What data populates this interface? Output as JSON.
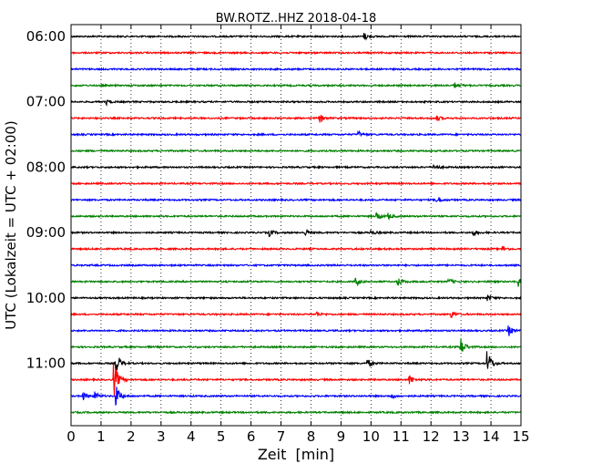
{
  "chart_data": {
    "type": "line",
    "title": "BW.ROTZ..HHZ 2018-04-18",
    "xlabel": "Zeit  [min]",
    "ylabel": "UTC (Lokalzeit = UTC + 02:00)",
    "xlim": [
      0,
      15
    ],
    "x_ticks": [
      "0",
      "1",
      "2",
      "3",
      "4",
      "5",
      "6",
      "7",
      "8",
      "9",
      "10",
      "11",
      "12",
      "13",
      "14",
      "15"
    ],
    "y_ticks": [
      "06:00",
      "07:00",
      "08:00",
      "09:00",
      "10:00",
      "11:00"
    ],
    "grid": "vertical dotted",
    "trace_colors": [
      "#000000",
      "#ff0000",
      "#0000ff",
      "#008000"
    ],
    "trace_start_times": [
      "06:00",
      "06:15",
      "06:30",
      "06:45",
      "07:00",
      "07:15",
      "07:30",
      "07:45",
      "08:00",
      "08:15",
      "08:30",
      "08:45",
      "09:00",
      "09:15",
      "09:30",
      "09:45",
      "10:00",
      "10:15",
      "10:30",
      "10:45",
      "11:00",
      "11:15",
      "11:30",
      "11:45"
    ],
    "events": [
      {
        "trace": 0,
        "minute": 9.8,
        "amplitude": 0.25
      },
      {
        "trace": 3,
        "minute": 12.8,
        "amplitude": 0.2
      },
      {
        "trace": 4,
        "minute": 1.2,
        "amplitude": 0.2
      },
      {
        "trace": 5,
        "minute": 8.3,
        "amplitude": 0.3
      },
      {
        "trace": 5,
        "minute": 12.2,
        "amplitude": 0.2
      },
      {
        "trace": 6,
        "minute": 9.6,
        "amplitude": 0.2
      },
      {
        "trace": 8,
        "minute": 12.1,
        "amplitude": 0.25
      },
      {
        "trace": 10,
        "minute": 12.2,
        "amplitude": 0.3
      },
      {
        "trace": 11,
        "minute": 10.2,
        "amplitude": 0.3
      },
      {
        "trace": 11,
        "minute": 10.6,
        "amplitude": 0.2
      },
      {
        "trace": 12,
        "minute": 6.6,
        "amplitude": 0.3
      },
      {
        "trace": 12,
        "minute": 7.8,
        "amplitude": 0.25
      },
      {
        "trace": 12,
        "minute": 10.0,
        "amplitude": 0.2
      },
      {
        "trace": 12,
        "minute": 13.4,
        "amplitude": 0.25
      },
      {
        "trace": 13,
        "minute": 14.4,
        "amplitude": 0.2
      },
      {
        "trace": 15,
        "minute": 9.5,
        "amplitude": 0.3
      },
      {
        "trace": 15,
        "minute": 10.9,
        "amplitude": 0.35
      },
      {
        "trace": 15,
        "minute": 12.6,
        "amplitude": 0.2
      },
      {
        "trace": 15,
        "minute": 14.9,
        "amplitude": 0.4
      },
      {
        "trace": 16,
        "minute": 13.9,
        "amplitude": 0.2
      },
      {
        "trace": 17,
        "minute": 8.2,
        "amplitude": 0.2
      },
      {
        "trace": 17,
        "minute": 12.7,
        "amplitude": 0.25
      },
      {
        "trace": 18,
        "minute": 14.6,
        "amplitude": 0.4
      },
      {
        "trace": 19,
        "minute": 13.0,
        "amplitude": 0.7
      },
      {
        "trace": 20,
        "minute": 1.5,
        "amplitude": 1.0
      },
      {
        "trace": 20,
        "minute": 9.9,
        "amplitude": 0.3
      },
      {
        "trace": 20,
        "minute": 13.9,
        "amplitude": 0.95
      },
      {
        "trace": 21,
        "minute": 1.45,
        "amplitude": 1.3
      },
      {
        "trace": 21,
        "minute": 11.3,
        "amplitude": 0.35
      },
      {
        "trace": 22,
        "minute": 0.4,
        "amplitude": 0.3
      },
      {
        "trace": 22,
        "minute": 0.8,
        "amplitude": 0.3
      },
      {
        "trace": 22,
        "minute": 1.5,
        "amplitude": 0.8
      },
      {
        "trace": 22,
        "minute": 10.7,
        "amplitude": 0.2
      }
    ]
  }
}
